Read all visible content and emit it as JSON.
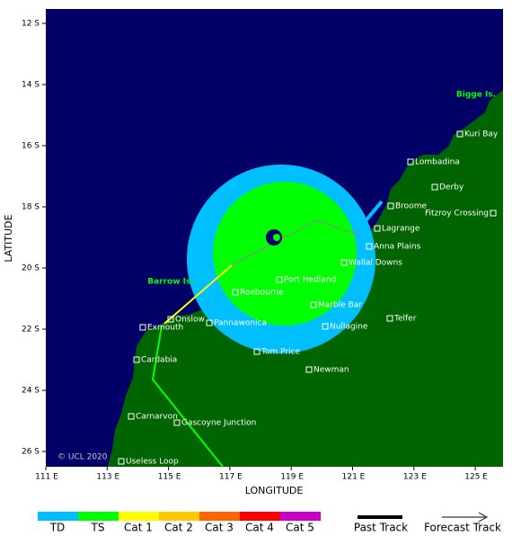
{
  "map": {
    "x_label": "LONGITUDE",
    "y_label": "LATITUDE",
    "lon_ticks": [
      "111 E",
      "113 E",
      "115 E",
      "117 E",
      "119 E",
      "121 E",
      "123 E",
      "125 E"
    ],
    "lat_ticks": [
      "12 S",
      "14 S",
      "16 S",
      "18 S",
      "20 S",
      "22 S",
      "24 S",
      "26 S"
    ],
    "islands": [
      "Bigge Is.",
      "Barrow Is."
    ],
    "places": [
      "Kuri Bay",
      "Lombadina",
      "Derby",
      "Broome",
      "Fitzroy Crossing",
      "Lagrange",
      "Anna Plains",
      "Wallal Downs",
      "Port Hedland",
      "Roebourne",
      "Marble Bar",
      "Onslow",
      "Exmouth",
      "Pannawonica",
      "Telfer",
      "Nullagine",
      "Tom Price",
      "Cardabia",
      "Newman",
      "Carnarvon",
      "Gascoyne Junction",
      "Useless Loop"
    ],
    "copyright": "© UCL 2020"
  },
  "legend": {
    "categories": [
      {
        "label": "TD",
        "color": "#00bfff"
      },
      {
        "label": "TS",
        "color": "#00ff00"
      },
      {
        "label": "Cat 1",
        "color": "#ffff00"
      },
      {
        "label": "Cat 2",
        "color": "#ffc800"
      },
      {
        "label": "Cat 3",
        "color": "#ff6400"
      },
      {
        "label": "Cat 4",
        "color": "#ff0000"
      },
      {
        "label": "Cat 5",
        "color": "#c800c8"
      }
    ],
    "past_track": "Past Track",
    "forecast_track": "Forecast Track"
  }
}
